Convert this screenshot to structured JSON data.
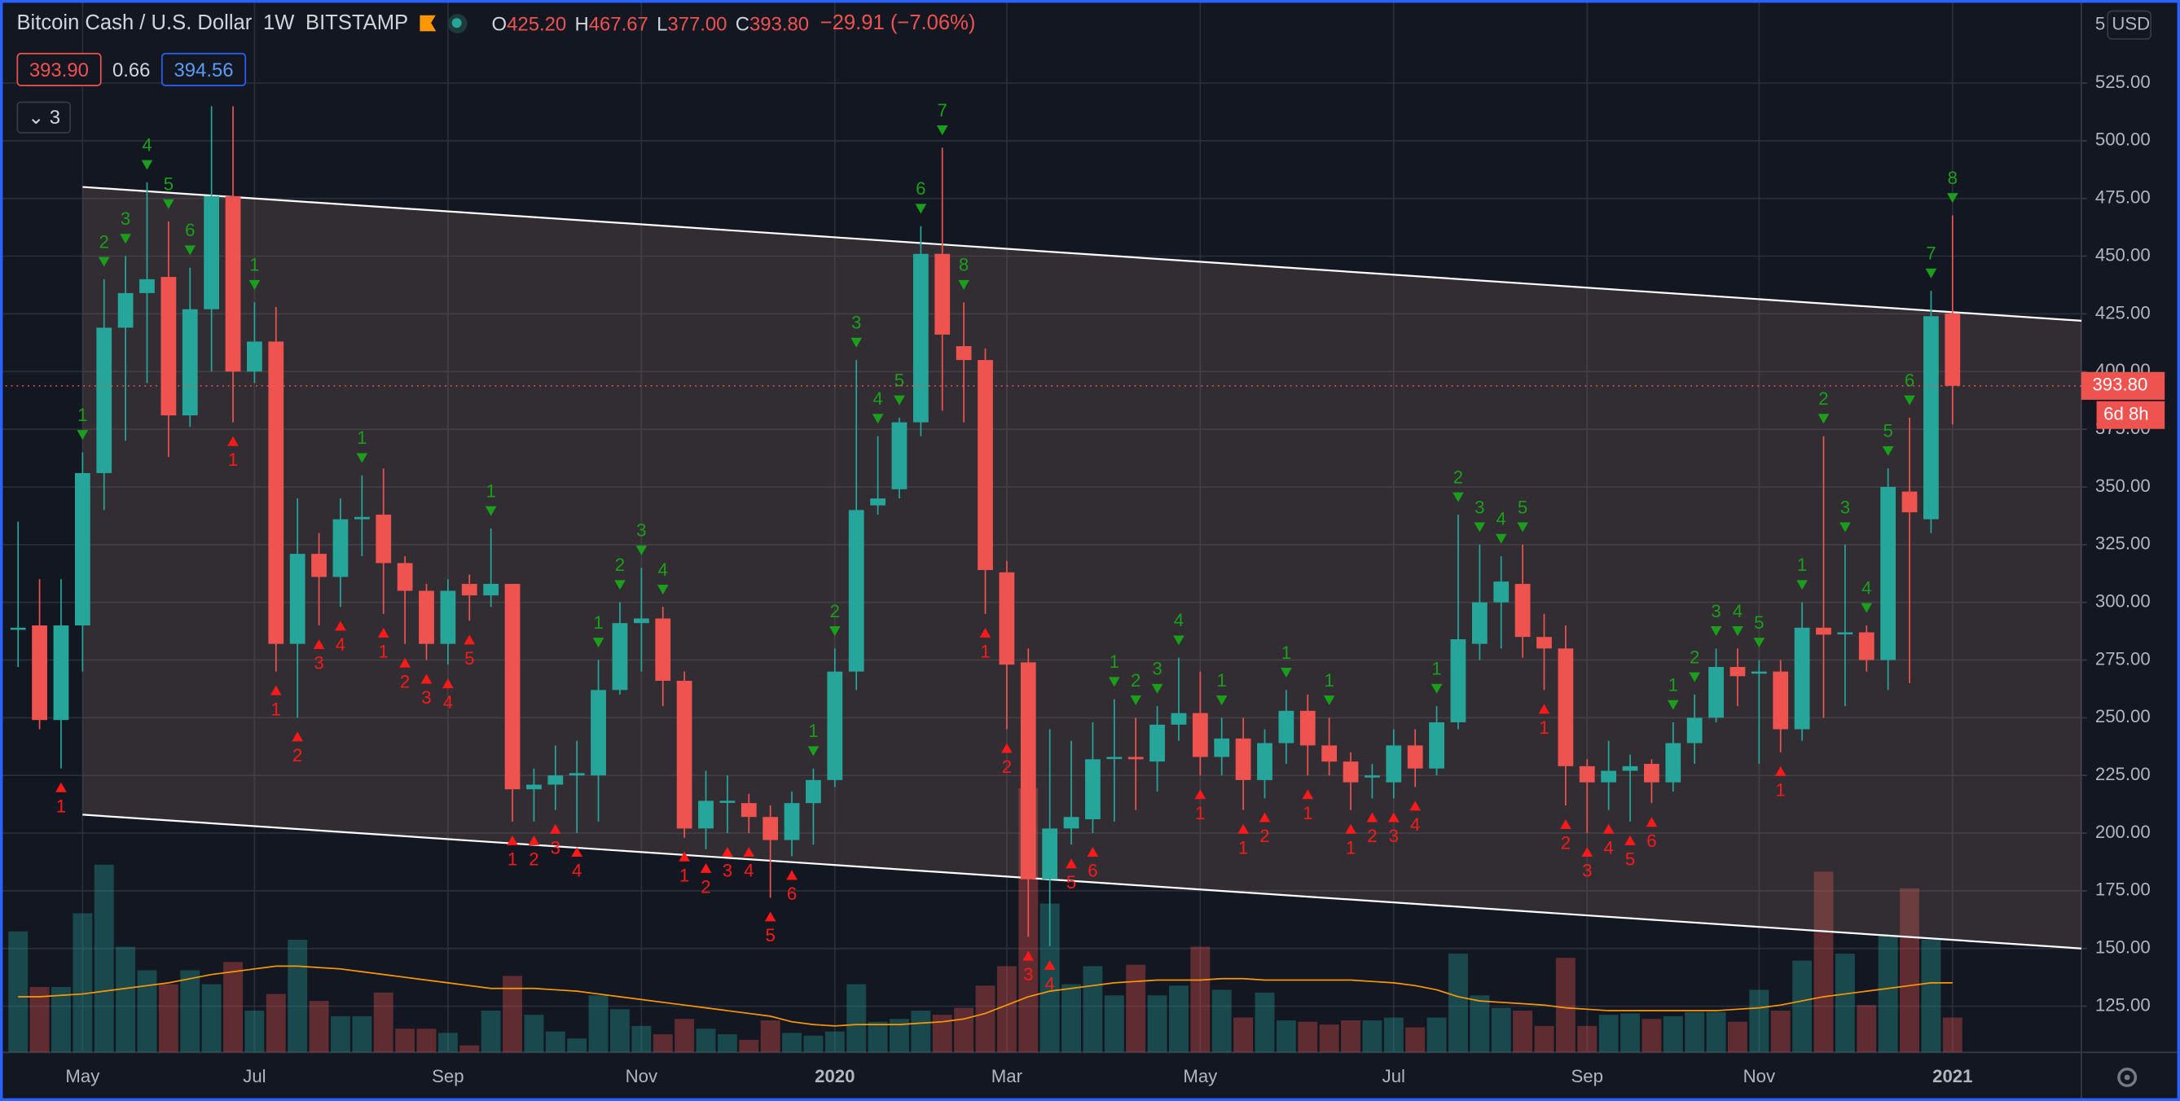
{
  "header": {
    "symbol": "Bitcoin Cash / U.S. Dollar",
    "interval": "1W",
    "exchange": "BITSTAMP",
    "ohlc": [
      {
        "label": "O",
        "value": "425.20"
      },
      {
        "label": "H",
        "value": "467.67"
      },
      {
        "label": "L",
        "value": "377.00"
      },
      {
        "label": "C",
        "value": "393.80"
      }
    ],
    "change": "−29.91 (−7.06%)",
    "bid": "393.90",
    "spread": "0.66",
    "ask": "394.56",
    "indicators": "3"
  },
  "chart_data": {
    "type": "candlestick",
    "categories": [
      null,
      null,
      null,
      "May",
      null,
      null,
      null,
      null,
      null,
      null,
      null,
      "Jul",
      null,
      null,
      null,
      null,
      null,
      null,
      null,
      null,
      "Sep",
      null,
      null,
      null,
      null,
      null,
      null,
      null,
      null,
      "Nov",
      null,
      null,
      null,
      null,
      null,
      null,
      null,
      null,
      "2020",
      null,
      null,
      null,
      null,
      null,
      null,
      null,
      "Mar",
      null,
      null,
      null,
      null,
      null,
      null,
      null,
      null,
      "May",
      null,
      null,
      null,
      null,
      null,
      null,
      null,
      null,
      "Jul",
      null,
      null,
      null,
      null,
      null,
      null,
      null,
      null,
      "Sep",
      null,
      null,
      null,
      null,
      null,
      null,
      null,
      "Nov",
      null,
      null,
      null,
      null,
      null,
      null,
      null,
      null,
      "2021"
    ],
    "open": [
      289,
      290,
      249,
      290,
      356,
      419,
      434,
      441,
      381,
      427,
      476,
      400,
      413,
      282,
      321,
      311,
      336,
      338,
      317,
      305,
      282,
      308,
      303,
      308,
      219,
      221,
      225,
      225,
      262,
      291,
      293,
      266,
      202,
      214,
      213,
      207,
      197,
      213,
      223,
      270,
      342,
      349,
      378,
      451,
      411,
      405,
      313,
      274,
      180,
      202,
      206,
      233,
      233,
      231,
      247,
      252,
      233,
      241,
      223,
      239,
      253,
      238,
      231,
      225,
      222,
      238,
      228,
      248,
      282,
      300,
      308,
      285,
      280,
      229,
      222,
      227,
      230,
      222,
      239,
      250,
      272,
      270,
      270,
      245,
      289,
      287,
      287,
      275,
      348,
      336,
      425.2
    ],
    "high": [
      335,
      310,
      310,
      365,
      440,
      450,
      482,
      465,
      445,
      515,
      515,
      430,
      428,
      345,
      330,
      345,
      355,
      358,
      320,
      308,
      310,
      312,
      332,
      308,
      228,
      238,
      240,
      275,
      300,
      315,
      298,
      270,
      227,
      225,
      217,
      212,
      218,
      228,
      280,
      405,
      372,
      380,
      463,
      497,
      430,
      410,
      318,
      280,
      245,
      240,
      248,
      258,
      250,
      255,
      276,
      270,
      250,
      250,
      245,
      262,
      260,
      250,
      235,
      230,
      245,
      245,
      255,
      338,
      325,
      320,
      325,
      295,
      290,
      232,
      240,
      234,
      232,
      248,
      260,
      280,
      280,
      275,
      275,
      300,
      372,
      325,
      290,
      358,
      380,
      435,
      467.67
    ],
    "low": [
      272,
      245,
      228,
      270,
      340,
      370,
      395,
      363,
      376,
      400,
      378,
      395,
      270,
      250,
      290,
      298,
      320,
      295,
      282,
      275,
      273,
      292,
      298,
      205,
      205,
      210,
      200,
      205,
      260,
      270,
      255,
      198,
      193,
      200,
      200,
      172,
      190,
      195,
      220,
      262,
      338,
      345,
      372,
      383,
      378,
      295,
      245,
      155,
      151,
      195,
      200,
      205,
      210,
      218,
      240,
      225,
      225,
      210,
      215,
      230,
      225,
      225,
      210,
      215,
      215,
      220,
      225,
      245,
      275,
      280,
      276,
      262,
      212,
      200,
      210,
      205,
      213,
      218,
      230,
      248,
      255,
      230,
      235,
      240,
      250,
      255,
      270,
      262,
      265,
      330,
      377
    ],
    "close": [
      289,
      249,
      290,
      356,
      419,
      434,
      440,
      381,
      427,
      476,
      400,
      413,
      282,
      321,
      311,
      336,
      337,
      317,
      305,
      282,
      305,
      303,
      308,
      219,
      221,
      225,
      226,
      262,
      291,
      293,
      266,
      202,
      214,
      214,
      207,
      197,
      213,
      223,
      270,
      340,
      345,
      378,
      451,
      416,
      405,
      314,
      273,
      180,
      202,
      207,
      232,
      233,
      232,
      247,
      252,
      233,
      241,
      223,
      239,
      253,
      238,
      231,
      222,
      225,
      238,
      228,
      248,
      284,
      300,
      309,
      285,
      280,
      229,
      222,
      227,
      229,
      222,
      239,
      250,
      272,
      268,
      270,
      245,
      289,
      286,
      287,
      275,
      350,
      339,
      424,
      393.8
    ],
    "volume": [
      87,
      47,
      47,
      100,
      135,
      76,
      59,
      49,
      59,
      49,
      65,
      30,
      42,
      81,
      37,
      26,
      26,
      43,
      17,
      17,
      14,
      5,
      30,
      55,
      27,
      15,
      10,
      41,
      31,
      19,
      13,
      24,
      17,
      13,
      9,
      23,
      14,
      12,
      15,
      49,
      22,
      24,
      30,
      27,
      32,
      48,
      62,
      190,
      107,
      49,
      62,
      41,
      63,
      41,
      48,
      76,
      45,
      25,
      43,
      23,
      22,
      20,
      23,
      23,
      25,
      18,
      25,
      71,
      41,
      32,
      30,
      19,
      68,
      19,
      27,
      28,
      24,
      26,
      29,
      29,
      22,
      45,
      30,
      66,
      130,
      71,
      34,
      84,
      118,
      81,
      25
    ],
    "volume_ma": [
      40,
      40,
      41,
      42,
      44,
      46,
      48,
      50,
      53,
      56,
      58,
      60,
      62,
      62,
      61,
      60,
      58,
      56,
      54,
      52,
      50,
      48,
      46,
      46,
      46,
      45,
      44,
      42,
      40,
      38,
      36,
      34,
      32,
      30,
      28,
      26,
      22,
      20,
      19,
      20,
      20,
      20,
      21,
      22,
      24,
      28,
      34,
      40,
      44,
      46,
      48,
      50,
      51,
      52,
      52,
      52,
      53,
      53,
      52,
      52,
      52,
      52,
      52,
      51,
      50,
      48,
      45,
      40,
      37,
      36,
      35,
      34,
      32,
      31,
      30,
      30,
      30,
      30,
      30,
      30,
      31,
      32,
      34,
      37,
      40,
      42,
      44,
      46,
      48,
      50,
      50
    ],
    "td_sell": [
      null,
      null,
      null,
      1,
      2,
      3,
      4,
      5,
      6,
      null,
      null,
      1,
      null,
      null,
      null,
      null,
      1,
      null,
      null,
      null,
      null,
      null,
      1,
      null,
      null,
      null,
      null,
      1,
      2,
      3,
      4,
      null,
      null,
      null,
      null,
      null,
      null,
      1,
      2,
      3,
      4,
      5,
      6,
      7,
      8,
      null,
      null,
      null,
      null,
      null,
      null,
      1,
      2,
      3,
      4,
      null,
      1,
      null,
      null,
      1,
      null,
      1,
      null,
      null,
      null,
      null,
      1,
      2,
      3,
      4,
      5,
      null,
      null,
      null,
      null,
      null,
      null,
      1,
      2,
      3,
      4,
      5,
      null,
      1,
      2,
      3,
      4,
      5,
      6,
      7,
      8
    ],
    "td_buy": [
      null,
      null,
      1,
      null,
      null,
      null,
      null,
      null,
      null,
      null,
      1,
      null,
      1,
      2,
      3,
      4,
      null,
      1,
      2,
      3,
      4,
      5,
      null,
      1,
      2,
      3,
      4,
      null,
      null,
      null,
      null,
      1,
      2,
      3,
      4,
      5,
      6,
      null,
      null,
      null,
      null,
      null,
      null,
      null,
      null,
      1,
      2,
      3,
      4,
      5,
      6,
      null,
      null,
      null,
      null,
      1,
      null,
      1,
      2,
      null,
      1,
      null,
      1,
      2,
      3,
      4,
      null,
      null,
      null,
      null,
      null,
      1,
      2,
      3,
      4,
      5,
      6,
      null,
      null,
      null,
      null,
      null,
      1,
      null,
      null,
      null,
      null,
      null,
      null,
      null,
      null
    ],
    "channel": {
      "x": [
        3,
        96
      ],
      "upper": [
        480,
        422
      ],
      "lower": [
        208,
        150
      ]
    },
    "ylim": [
      105,
      561
    ],
    "yticks": [
      {
        "value": 125,
        "label": "125.00"
      },
      {
        "value": 150,
        "label": "150.00"
      },
      {
        "value": 175,
        "label": "175.00"
      },
      {
        "value": 200,
        "label": "200.00"
      },
      {
        "value": 225,
        "label": "225.00"
      },
      {
        "value": 250,
        "label": "250.00"
      },
      {
        "value": 275,
        "label": "275.00"
      },
      {
        "value": 300,
        "label": "300.00"
      },
      {
        "value": 325,
        "label": "325.00"
      },
      {
        "value": 350,
        "label": "350.00"
      },
      {
        "value": 375,
        "label": "375.00"
      },
      {
        "value": 400,
        "label": "400.00"
      },
      {
        "value": 425,
        "label": "425.00"
      },
      {
        "value": 450,
        "label": "450.00"
      },
      {
        "value": 475,
        "label": "475.00"
      },
      {
        "value": 500,
        "label": "500.00"
      },
      {
        "value": 525,
        "label": "525.00"
      }
    ],
    "axis_top_label": "5",
    "currency": "USD",
    "last_price": 393.8,
    "last_price_label": "393.80",
    "countdown": "6d 8h",
    "up_color": "#26a69a",
    "down_color": "#ef5350",
    "grid": true
  }
}
